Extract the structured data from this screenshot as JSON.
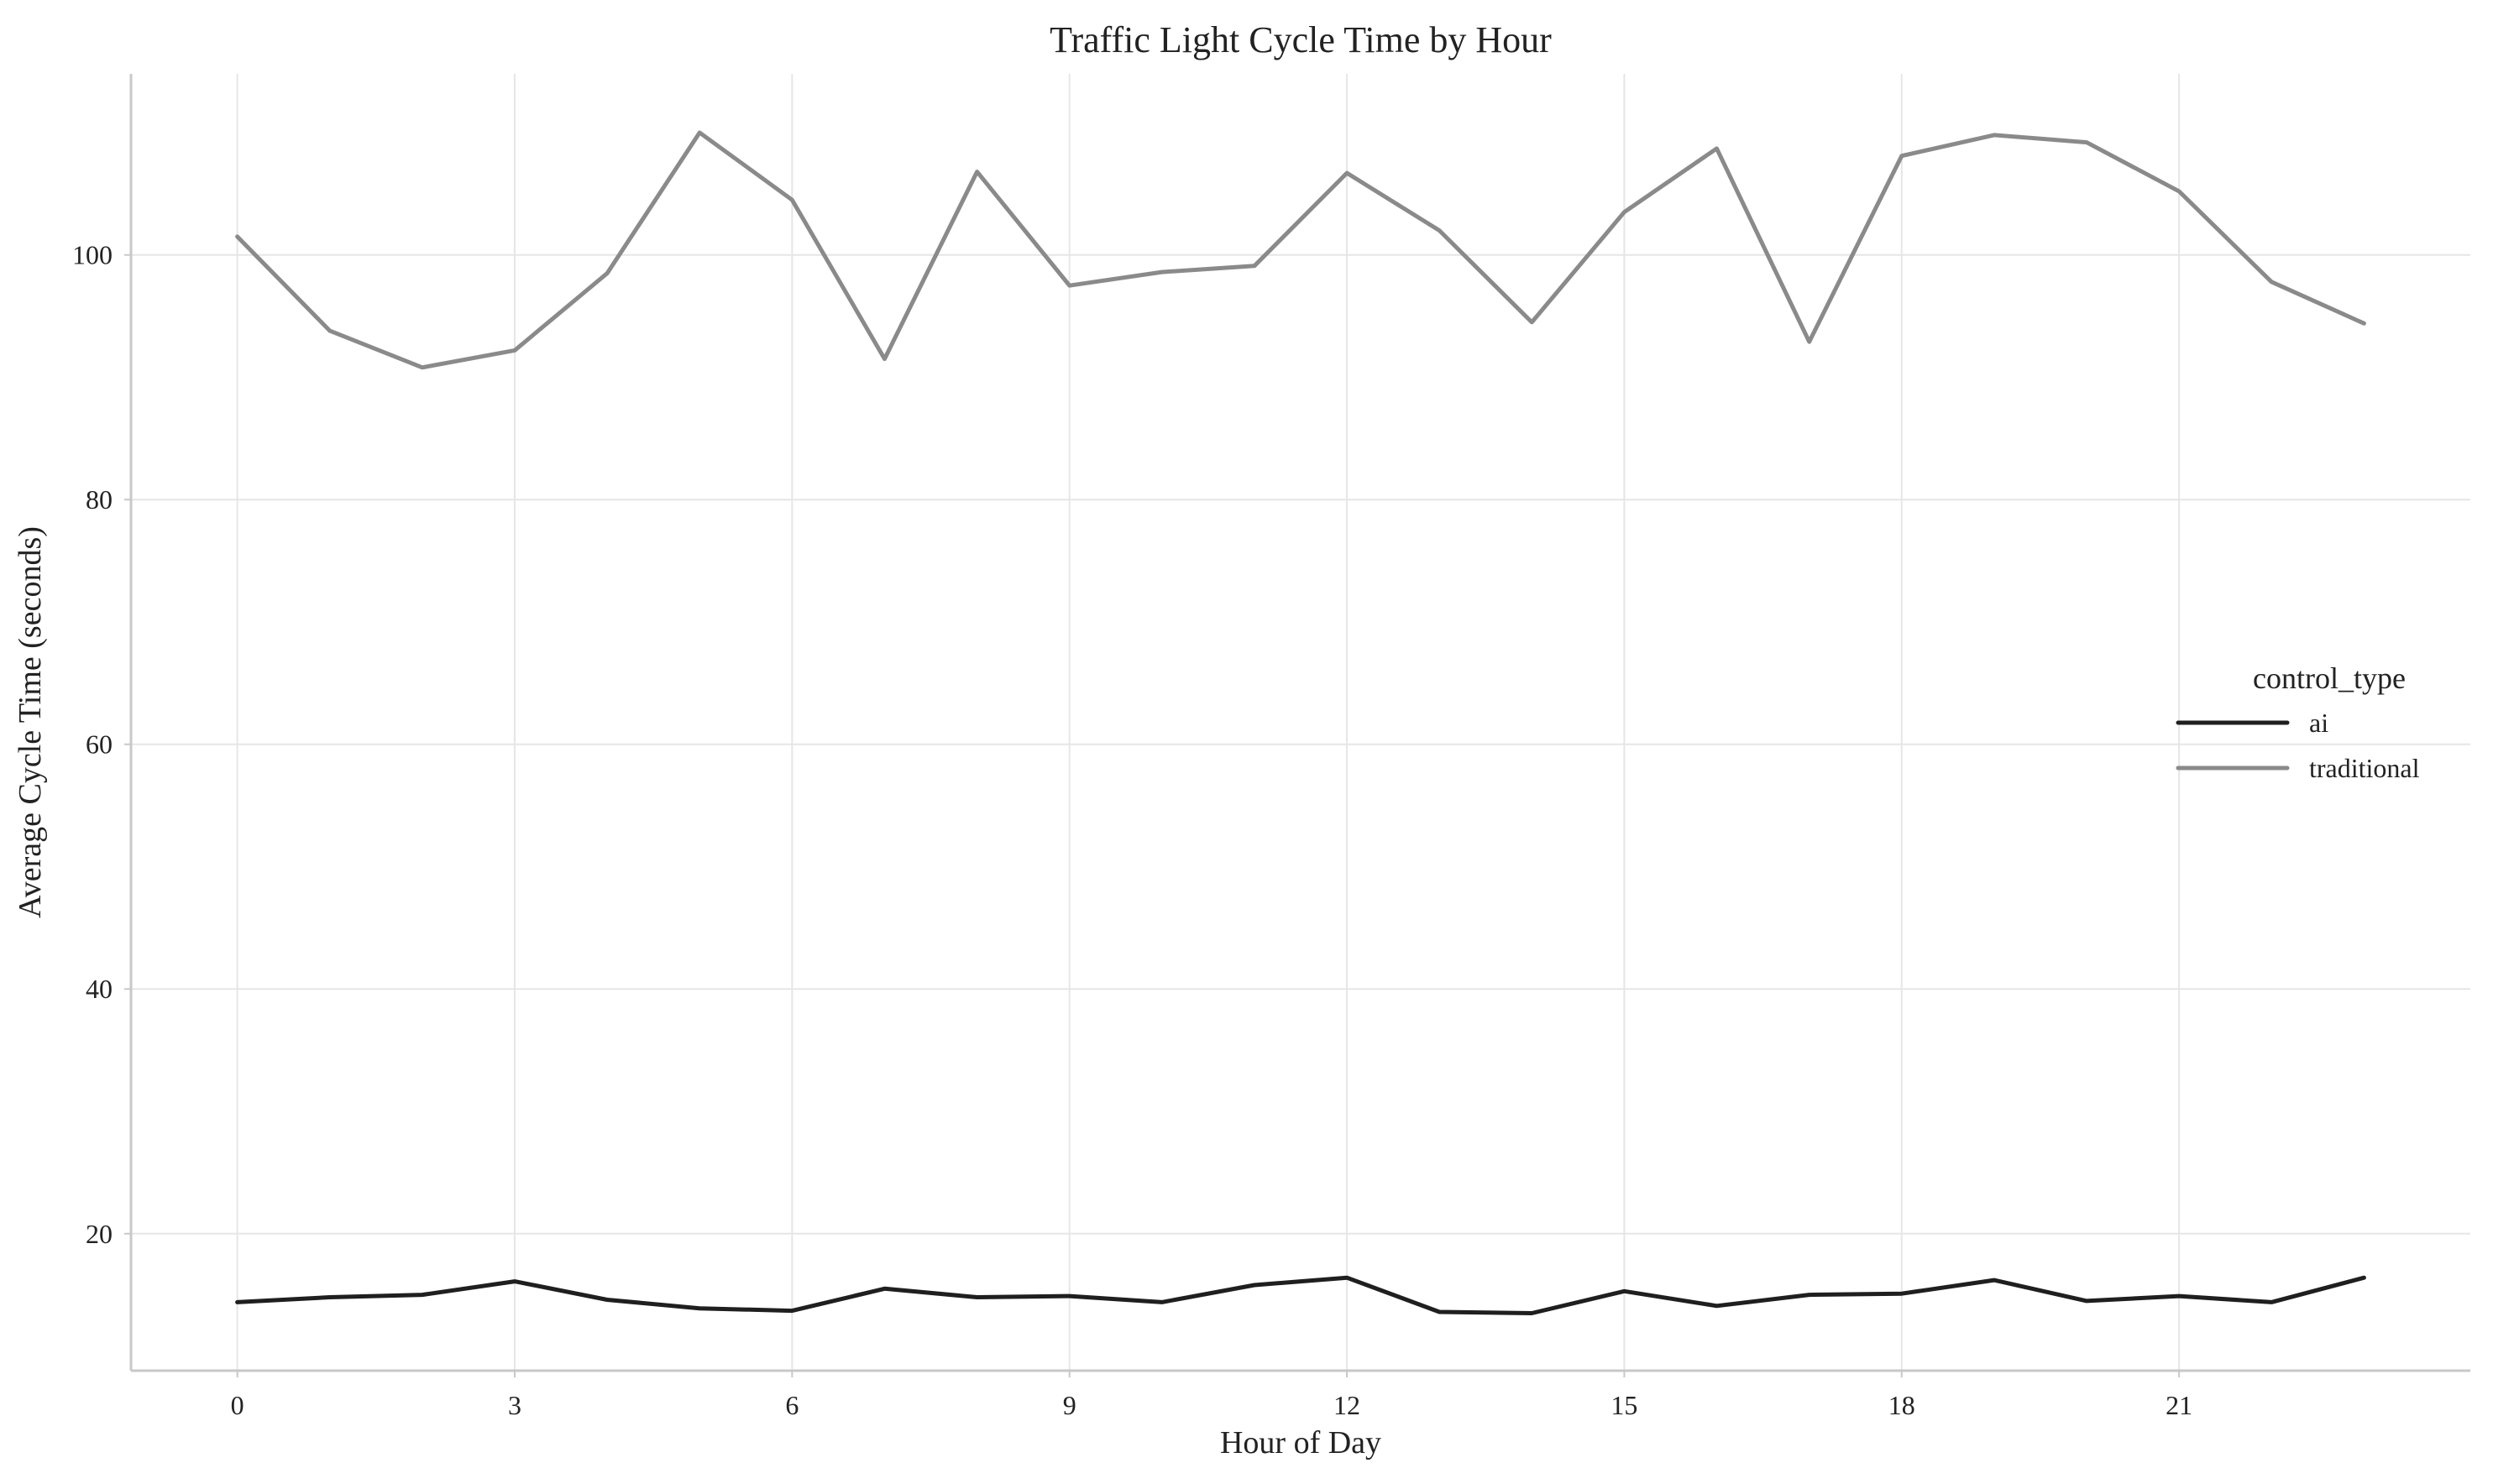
{
  "chart_data": {
    "type": "line",
    "title": "Traffic Light Cycle Time by Hour",
    "xlabel": "Hour of Day",
    "ylabel": "Average Cycle Time (seconds)",
    "x": [
      0,
      1,
      2,
      3,
      4,
      5,
      6,
      7,
      8,
      9,
      10,
      11,
      12,
      13,
      14,
      15,
      16,
      17,
      18,
      19,
      20,
      21,
      22,
      23
    ],
    "xlim": [
      -1.15,
      24.15
    ],
    "ylim": [
      8.8,
      114.8
    ],
    "xticks": [
      0,
      3,
      6,
      9,
      12,
      15,
      18,
      21
    ],
    "yticks": [
      20,
      40,
      60,
      80,
      100
    ],
    "grid": true,
    "legend": {
      "title": "control_type",
      "position": "center-right"
    },
    "series": [
      {
        "name": "ai",
        "color": "#1f1f1f",
        "values": [
          14.4,
          14.8,
          15.0,
          16.1,
          14.6,
          13.9,
          13.7,
          15.5,
          14.8,
          14.9,
          14.4,
          15.8,
          16.4,
          13.6,
          13.5,
          15.3,
          14.1,
          15.0,
          15.1,
          16.2,
          14.5,
          14.9,
          14.4,
          16.4
        ]
      },
      {
        "name": "traditional",
        "color": "#8a8a8a",
        "values": [
          101.5,
          93.8,
          90.8,
          92.2,
          98.5,
          110.0,
          104.5,
          91.5,
          106.8,
          97.5,
          98.6,
          99.1,
          106.7,
          102.0,
          94.5,
          103.5,
          108.7,
          92.9,
          108.1,
          109.8,
          109.2,
          105.2,
          97.8,
          94.4
        ]
      }
    ]
  }
}
